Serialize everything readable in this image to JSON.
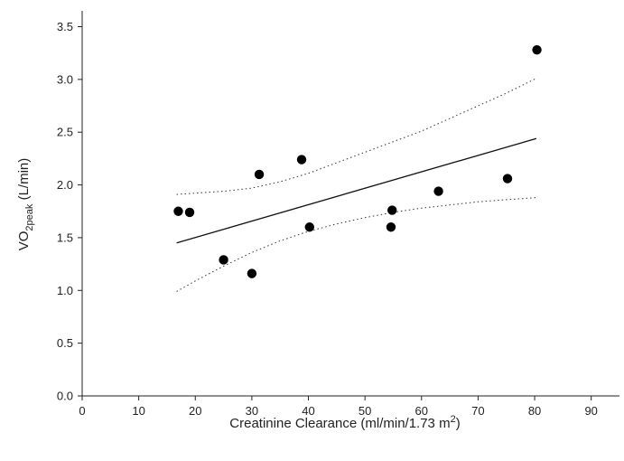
{
  "chart_data": {
    "type": "scatter",
    "title": "",
    "xlabel": {
      "main": "Creatinine Clearance (ml/min/1.73 m",
      "sup": "2",
      "end": ")"
    },
    "ylabel": {
      "main": "VO",
      "sub": "2peak",
      "end": " (L/min)"
    },
    "xlim": [
      0,
      95
    ],
    "ylim": [
      0,
      3.65
    ],
    "x_ticks": [
      0,
      10,
      20,
      30,
      40,
      50,
      60,
      70,
      80,
      90
    ],
    "y_ticks": [
      "0.0",
      "0.5",
      "1.0",
      "1.5",
      "2.0",
      "2.5",
      "3.0",
      "3.5"
    ],
    "grid": false,
    "points": [
      {
        "x": 17,
        "y": 1.75
      },
      {
        "x": 19,
        "y": 1.74
      },
      {
        "x": 25,
        "y": 1.29
      },
      {
        "x": 30,
        "y": 1.16
      },
      {
        "x": 31.3,
        "y": 2.1
      },
      {
        "x": 38.8,
        "y": 2.24
      },
      {
        "x": 40.2,
        "y": 1.6
      },
      {
        "x": 54.6,
        "y": 1.6
      },
      {
        "x": 54.8,
        "y": 1.76
      },
      {
        "x": 63,
        "y": 1.94
      },
      {
        "x": 75.2,
        "y": 2.06
      },
      {
        "x": 80.4,
        "y": 3.28
      }
    ],
    "regression_line": {
      "x": [
        16.7,
        80.3
      ],
      "y": [
        1.45,
        2.44
      ]
    },
    "confidence_upper": {
      "x": [
        16.7,
        25,
        30,
        35,
        40,
        45,
        50,
        55,
        60,
        65,
        70,
        75,
        80.3
      ],
      "y": [
        1.91,
        1.94,
        1.97,
        2.03,
        2.11,
        2.21,
        2.31,
        2.41,
        2.51,
        2.63,
        2.75,
        2.87,
        3.01
      ]
    },
    "confidence_lower": {
      "x": [
        16.7,
        20,
        25,
        30,
        35,
        40,
        45,
        50,
        55,
        60,
        65,
        70,
        75,
        80.3
      ],
      "y": [
        0.99,
        1.09,
        1.23,
        1.36,
        1.47,
        1.56,
        1.63,
        1.69,
        1.74,
        1.78,
        1.81,
        1.84,
        1.86,
        1.88
      ]
    }
  }
}
